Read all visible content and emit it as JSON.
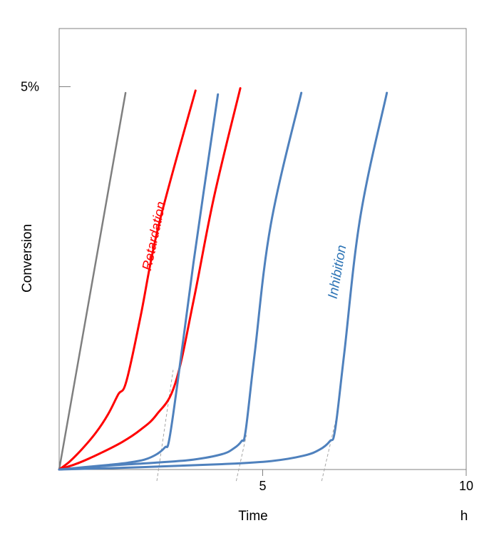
{
  "chart_data": {
    "type": "line",
    "xlabel": "Time",
    "xunit": "h",
    "ylabel": "Conversion",
    "xlim": [
      0,
      10
    ],
    "ylim": [
      0,
      5.1
    ],
    "x_ticks": [
      {
        "value": 5,
        "label": "5"
      },
      {
        "value": 10,
        "label": "10"
      }
    ],
    "y_ticks": [
      {
        "value": 5,
        "label": "5%"
      }
    ],
    "grid": false,
    "legend": "none",
    "annotations": [
      {
        "text": "Retardation",
        "color": "#ff0000"
      },
      {
        "text": "Inhibition",
        "color": "#2e75b6"
      }
    ],
    "series": [
      {
        "group": "reference",
        "color": "#7f7f7f",
        "x": [
          0,
          1.63
        ],
        "y": [
          0,
          4.92
        ]
      },
      {
        "group": "retardation",
        "color": "#ff0000",
        "x": [
          0,
          0.25,
          0.55,
          0.9,
          1.2,
          1.45,
          1.65,
          2.0,
          2.45,
          3.35
        ],
        "y": [
          0,
          0.1,
          0.26,
          0.48,
          0.72,
          0.98,
          1.15,
          2.0,
          3.2,
          4.95
        ]
      },
      {
        "group": "retardation",
        "color": "#ff0000",
        "x": [
          0,
          0.5,
          1.0,
          1.55,
          2.0,
          2.4,
          2.85,
          3.3,
          3.8,
          4.45
        ],
        "y": [
          0,
          0.09,
          0.21,
          0.36,
          0.52,
          0.72,
          1.12,
          2.2,
          3.55,
          4.98
        ]
      },
      {
        "group": "inhibition",
        "color": "#4f81bd",
        "x": [
          0,
          0.6,
          1.2,
          1.7,
          2.1,
          2.4,
          2.6,
          2.7,
          2.9,
          3.3,
          3.9
        ],
        "y": [
          0,
          0.03,
          0.06,
          0.09,
          0.13,
          0.2,
          0.29,
          0.38,
          1.1,
          2.7,
          4.9
        ]
      },
      {
        "group": "inhibition",
        "color": "#4f81bd",
        "x": [
          0,
          1.2,
          2.4,
          3.3,
          4.0,
          4.3,
          4.48,
          4.58,
          4.8,
          5.2,
          5.95
        ],
        "y": [
          0,
          0.05,
          0.09,
          0.13,
          0.2,
          0.28,
          0.37,
          0.5,
          1.5,
          3.2,
          4.92
        ]
      },
      {
        "group": "inhibition",
        "color": "#4f81bd",
        "x": [
          0,
          2.0,
          4.0,
          5.2,
          6.0,
          6.4,
          6.65,
          6.78,
          7.0,
          7.4,
          8.05
        ],
        "y": [
          0,
          0.03,
          0.07,
          0.11,
          0.18,
          0.26,
          0.37,
          0.52,
          1.5,
          3.3,
          4.92
        ]
      }
    ],
    "tangents": [
      {
        "x": [
          2.4,
          2.8
        ],
        "y": [
          -0.15,
          1.3
        ]
      },
      {
        "x": [
          4.35,
          4.6
        ],
        "y": [
          -0.15,
          0.45
        ]
      },
      {
        "x": [
          6.45,
          6.82
        ],
        "y": [
          -0.15,
          0.7
        ]
      }
    ]
  }
}
